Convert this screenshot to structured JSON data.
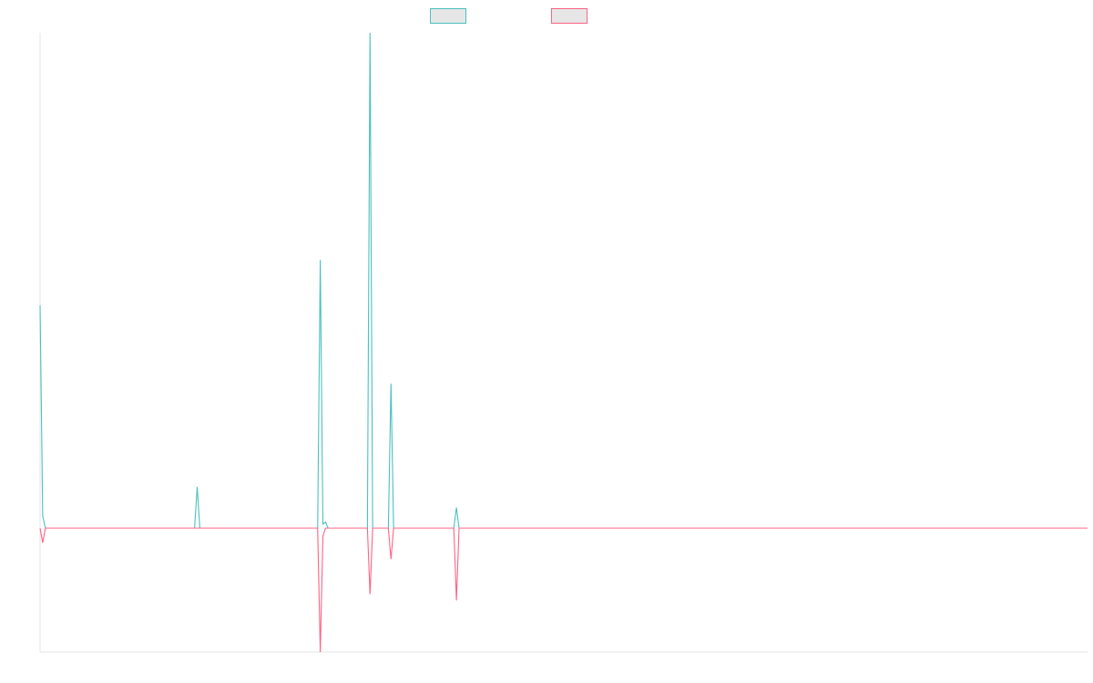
{
  "chart_data": {
    "type": "line",
    "title": "",
    "xlabel": "",
    "ylabel": "",
    "grid": false,
    "legend_position": "top-center",
    "x_count": 401,
    "ylim": [
      -30,
      120
    ],
    "series": [
      {
        "color": "#4bc0c0",
        "legend_fill": "#e6e6e6",
        "sparse_values": [
          [
            0,
            54
          ],
          [
            1,
            3
          ],
          [
            60,
            10
          ],
          [
            107,
            65
          ],
          [
            108,
            1
          ],
          [
            109,
            1.5
          ],
          [
            126,
            120
          ],
          [
            134,
            35
          ],
          [
            159,
            5
          ]
        ]
      },
      {
        "color": "#ff6384",
        "legend_fill": "#e6e6e6",
        "sparse_values": [
          [
            1,
            -3.5
          ],
          [
            107,
            -30
          ],
          [
            108,
            -2
          ],
          [
            126,
            -16
          ],
          [
            134,
            -7.5
          ],
          [
            159,
            -17.5
          ]
        ]
      }
    ]
  }
}
